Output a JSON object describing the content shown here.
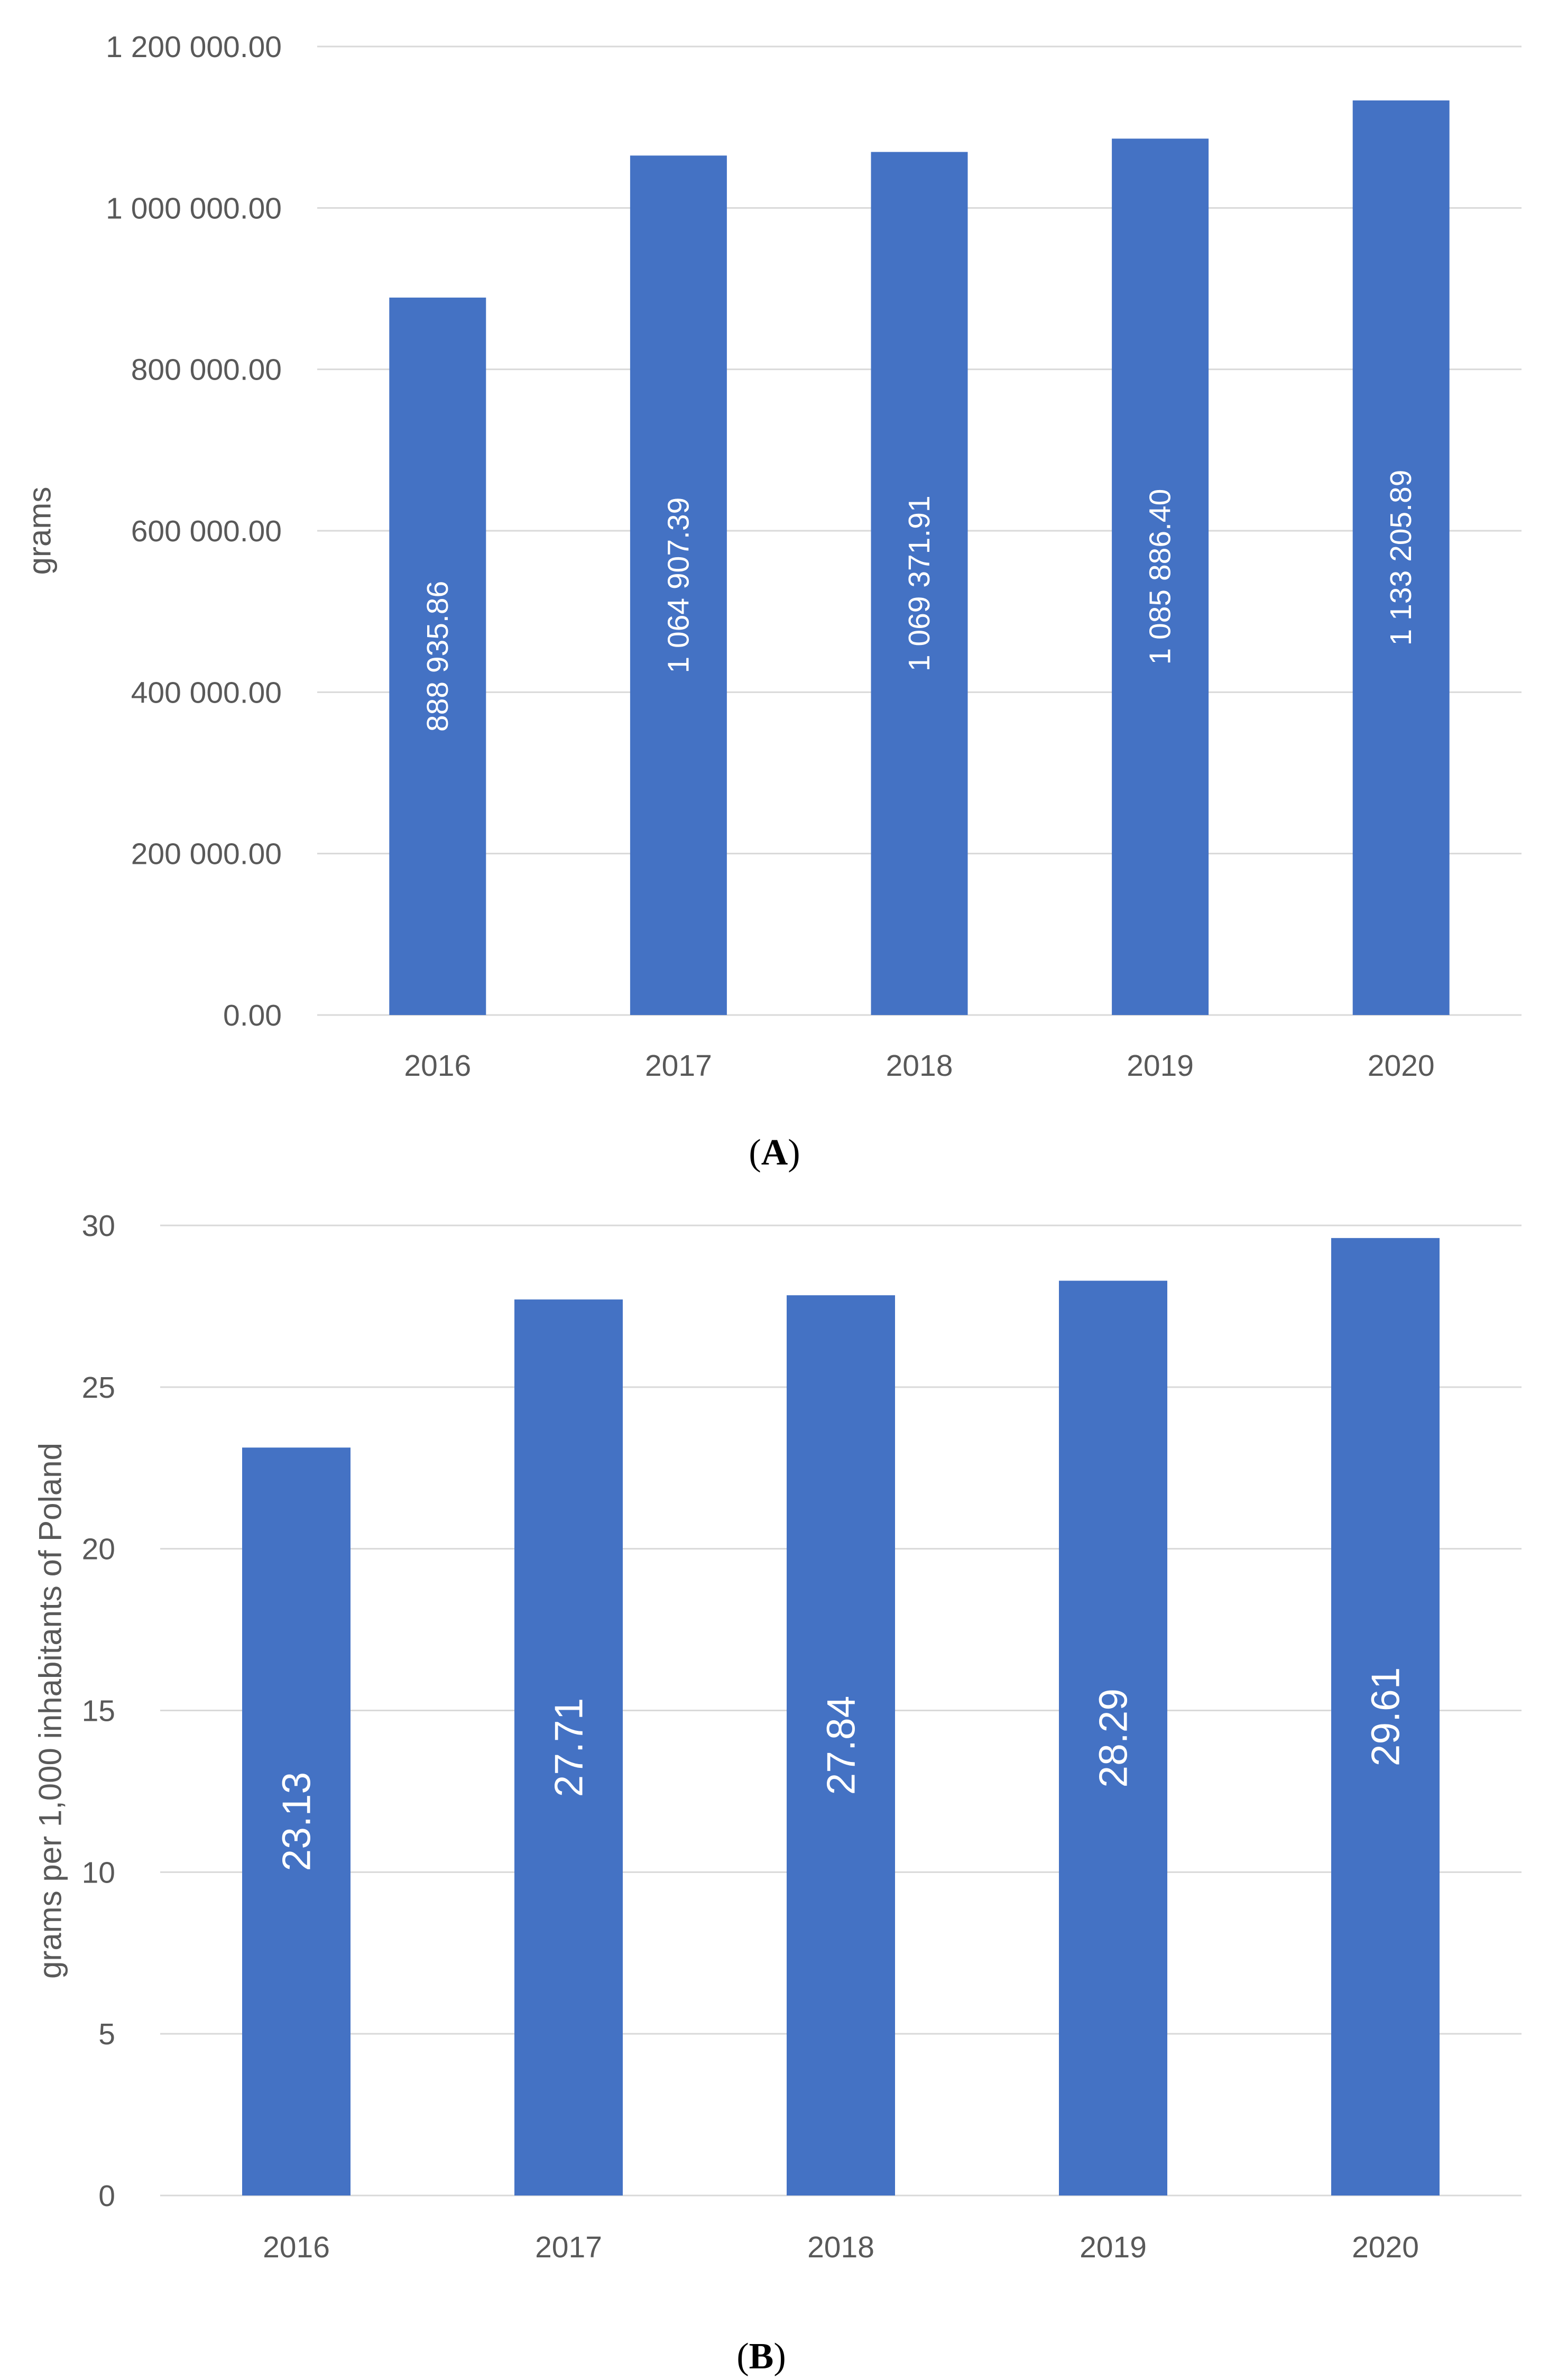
{
  "chart_data": [
    {
      "panel": "A",
      "caption": {
        "open": "(",
        "letter": "A",
        "close": ")"
      },
      "type": "bar",
      "title": "",
      "xlabel": "",
      "ylabel": "grams",
      "categories": [
        "2016",
        "2017",
        "2018",
        "2019",
        "2020"
      ],
      "values": [
        888935.86,
        1064907.39,
        1069371.91,
        1085886.4,
        1133205.89
      ],
      "data_labels": [
        "888 935.86",
        "1 064 907.39",
        "1 069 371.91",
        "1 085 886.40",
        "1 133 205.89"
      ],
      "ylim": [
        0,
        1200000
      ],
      "yticks": [
        0,
        200000,
        400000,
        600000,
        800000,
        1000000,
        1200000
      ],
      "ytick_labels": [
        "0.00",
        "200 000.00",
        "400 000.00",
        "600 000.00",
        "800 000.00",
        "1 000 000.00",
        "1 200 000.00"
      ],
      "grid": true,
      "bar_color": "#4472C4"
    },
    {
      "panel": "B",
      "caption": {
        "open": "(",
        "letter": "B",
        "close": ")"
      },
      "type": "bar",
      "title": "",
      "xlabel": "",
      "ylabel": "grams per 1,000 inhabitants of Poland",
      "categories": [
        "2016",
        "2017",
        "2018",
        "2019",
        "2020"
      ],
      "values": [
        23.13,
        27.71,
        27.84,
        28.29,
        29.61
      ],
      "data_labels": [
        "23.13",
        "27.71",
        "27.84",
        "28.29",
        "29.61"
      ],
      "ylim": [
        0,
        30
      ],
      "yticks": [
        0,
        5,
        10,
        15,
        20,
        25,
        30
      ],
      "ytick_labels": [
        "0",
        "5",
        "10",
        "15",
        "20",
        "25",
        "30"
      ],
      "grid": true,
      "bar_color": "#4472C4"
    }
  ]
}
